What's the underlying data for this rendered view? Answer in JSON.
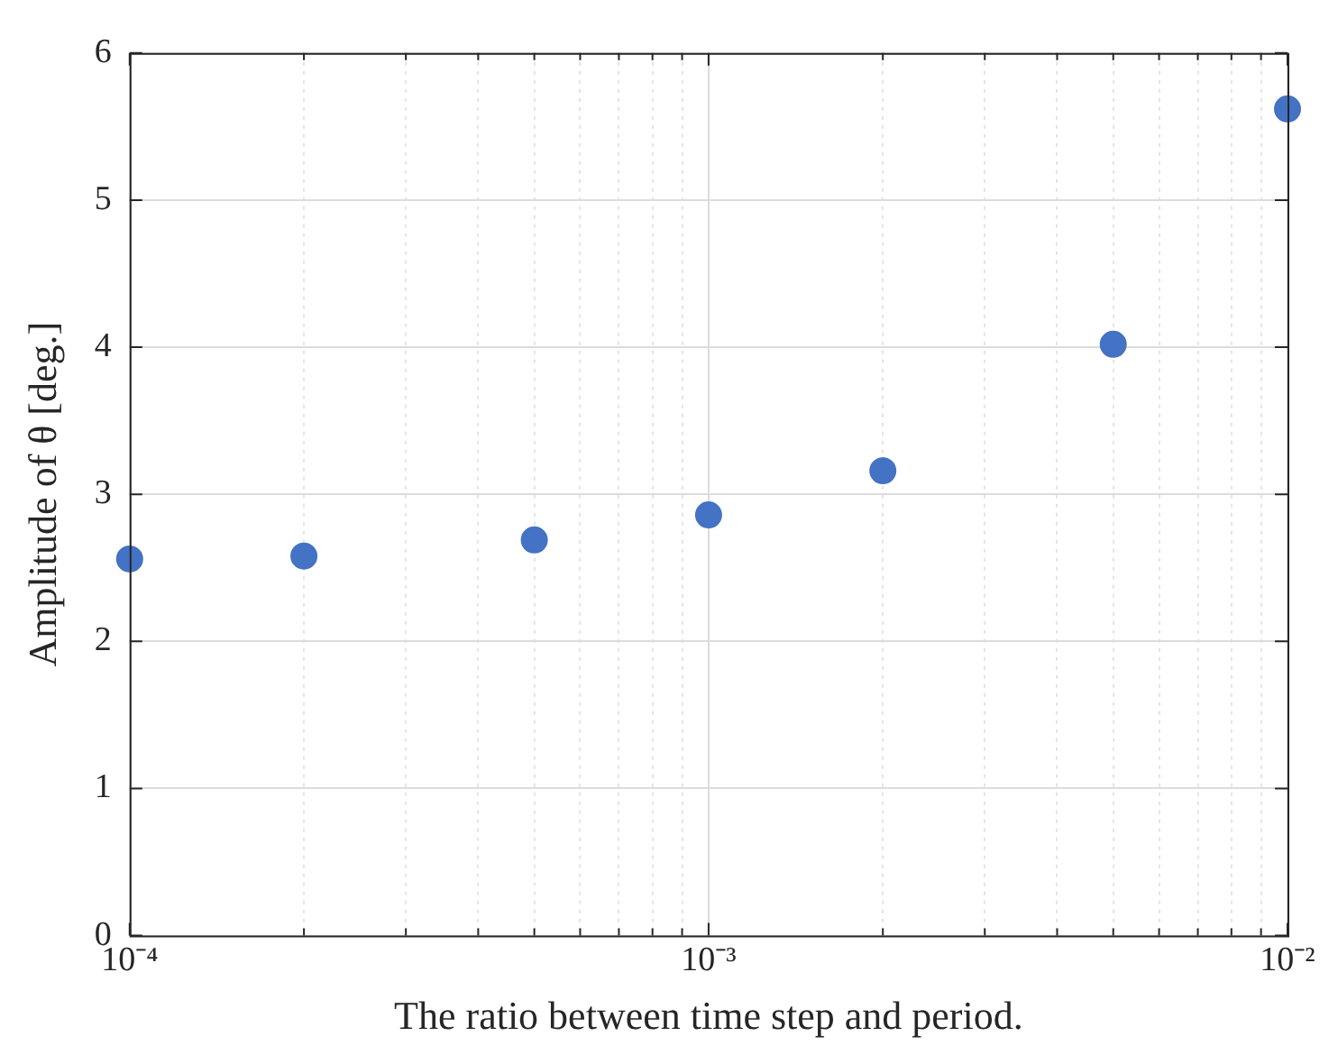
{
  "chart_data": {
    "type": "scatter",
    "xlabel": "The ratio between time step and period.",
    "ylabel": "Amplitude of θ [deg.]",
    "x": [
      0.0001,
      0.0002,
      0.0005,
      0.001,
      0.002,
      0.005,
      0.01
    ],
    "series": [
      {
        "color": "#4472c4",
        "values": [
          2.56,
          2.58,
          2.69,
          2.86,
          3.16,
          4.02,
          5.62
        ]
      }
    ],
    "log": "x",
    "xlim": [
      0.0001,
      0.01
    ],
    "xticks": [
      {
        "value": 0.0001,
        "label": "10⁻⁴"
      },
      {
        "value": 0.0002,
        "label": null
      },
      {
        "value": 0.0003,
        "label": null
      },
      {
        "value": 0.0004,
        "label": null
      },
      {
        "value": 0.0005,
        "label": null
      },
      {
        "value": 0.0006,
        "label": null
      },
      {
        "value": 0.0007,
        "label": null
      },
      {
        "value": 0.0008,
        "label": null
      },
      {
        "value": 0.0009,
        "label": null
      },
      {
        "value": 0.001,
        "label": "10⁻³"
      },
      {
        "value": 0.002,
        "label": null
      },
      {
        "value": 0.003,
        "label": null
      },
      {
        "value": 0.004,
        "label": null
      },
      {
        "value": 0.005,
        "label": null
      },
      {
        "value": 0.006,
        "label": null
      },
      {
        "value": 0.007,
        "label": null
      },
      {
        "value": 0.008,
        "label": null
      },
      {
        "value": 0.009,
        "label": null
      },
      {
        "value": 0.01,
        "label": "10⁻²"
      }
    ],
    "ylim": [
      0,
      6
    ],
    "yticks": [
      0,
      1,
      2,
      3,
      4,
      5,
      6
    ],
    "grid": true,
    "marker": "circle"
  }
}
